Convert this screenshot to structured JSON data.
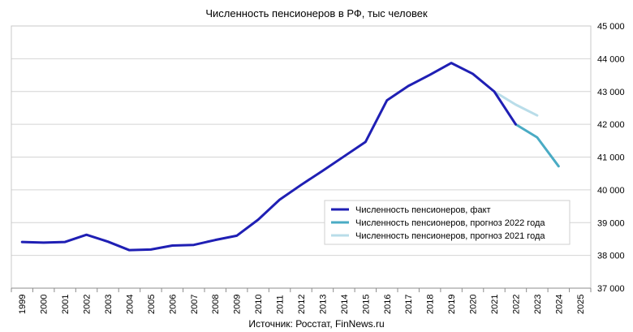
{
  "chart_data": {
    "type": "line",
    "title": "Численность пенсионеров в РФ, тыс человек",
    "source": "Источник: Росстат, FinNews.ru",
    "xlabel": "",
    "ylabel": "",
    "x_categories": [
      "1999",
      "2000",
      "2001",
      "2002",
      "2003",
      "2004",
      "2005",
      "2006",
      "2007",
      "2008",
      "2009",
      "2010",
      "2011",
      "2012",
      "2013",
      "2014",
      "2015",
      "2016",
      "2017",
      "2018",
      "2019",
      "2020",
      "2021",
      "2022",
      "2023",
      "2024",
      "2025"
    ],
    "ylim": [
      37000,
      45000
    ],
    "y_ticks": [
      37000,
      38000,
      39000,
      40000,
      41000,
      42000,
      43000,
      44000,
      45000
    ],
    "y_tick_labels": [
      "37 000",
      "38 000",
      "39 000",
      "40 000",
      "41 000",
      "42 000",
      "43 000",
      "44 000",
      "45 000"
    ],
    "grid": "horizontal",
    "legend_position": "inside-lower-right",
    "series": [
      {
        "name": "Численность пенсионеров, факт",
        "color": "#1f1fb4",
        "points": [
          [
            "1999",
            38410
          ],
          [
            "2000",
            38390
          ],
          [
            "2001",
            38410
          ],
          [
            "2002",
            38630
          ],
          [
            "2003",
            38420
          ],
          [
            "2004",
            38160
          ],
          [
            "2005",
            38180
          ],
          [
            "2006",
            38300
          ],
          [
            "2007",
            38320
          ],
          [
            "2008",
            38470
          ],
          [
            "2009",
            38600
          ],
          [
            "2010",
            39090
          ],
          [
            "2011",
            39700
          ],
          [
            "2012",
            40150
          ],
          [
            "2013",
            40580
          ],
          [
            "2014",
            41020
          ],
          [
            "2015",
            41460
          ],
          [
            "2016",
            42730
          ],
          [
            "2017",
            43170
          ],
          [
            "2018",
            43510
          ],
          [
            "2019",
            43870
          ],
          [
            "2020",
            43540
          ],
          [
            "2021",
            43000
          ],
          [
            "2022",
            42000
          ]
        ]
      },
      {
        "name": "Численность пенсионеров, прогноз 2022 года",
        "color": "#4aabc4",
        "points": [
          [
            "2022",
            42000
          ],
          [
            "2023",
            41600
          ],
          [
            "2024",
            40720
          ]
        ]
      },
      {
        "name": "Численность пенсионеров, прогноз 2021 года",
        "color": "#b9dde9",
        "points": [
          [
            "2021",
            43000
          ],
          [
            "2022",
            42600
          ],
          [
            "2023",
            42270
          ]
        ]
      }
    ]
  }
}
